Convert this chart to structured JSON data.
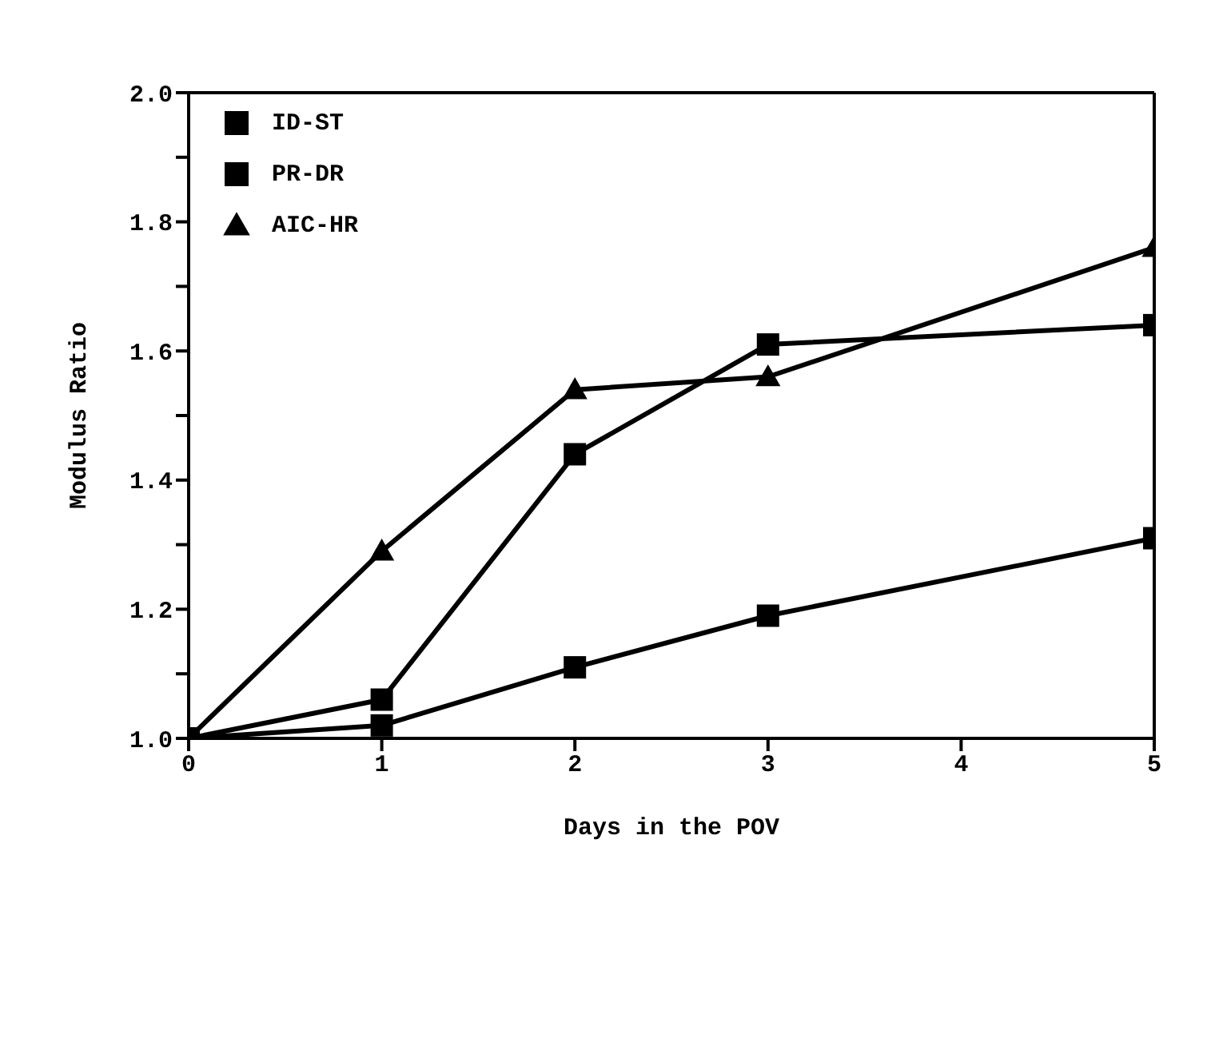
{
  "chart_data": {
    "type": "line",
    "xlabel": "Days in the POV",
    "ylabel": "Modulus Ratio",
    "x": [
      0,
      1,
      2,
      3,
      5
    ],
    "series": [
      {
        "name": "ID-ST",
        "color": "#000000",
        "marker": "square",
        "values": [
          1.0,
          1.02,
          1.11,
          1.19,
          1.31
        ]
      },
      {
        "name": "PR-DR",
        "color": "#000000",
        "marker": "square",
        "values": [
          1.0,
          1.06,
          1.44,
          1.61,
          1.64
        ]
      },
      {
        "name": "AIC-HR",
        "color": "#000000",
        "marker": "triangle",
        "values": [
          1.0,
          1.29,
          1.54,
          1.56,
          1.76
        ]
      }
    ],
    "xlim": [
      0,
      5
    ],
    "xticks": [
      0,
      1,
      2,
      3,
      4,
      5
    ],
    "ylim": [
      1.0,
      2.0
    ],
    "yticks": [
      {
        "value": 1.0,
        "label": "1.0"
      },
      {
        "value": 1.1,
        "label": null
      },
      {
        "value": 1.2,
        "label": "1.2"
      },
      {
        "value": 1.3,
        "label": null
      },
      {
        "value": 1.4,
        "label": "1.4"
      },
      {
        "value": 1.5,
        "label": null
      },
      {
        "value": 1.6,
        "label": "1.6"
      },
      {
        "value": 1.7,
        "label": null
      },
      {
        "value": 1.8,
        "label": "1.8"
      },
      {
        "value": 1.9,
        "label": null
      },
      {
        "value": 2.0,
        "label": "2.0"
      }
    ],
    "grid": false,
    "legend": "top left",
    "line_style": "solid"
  }
}
